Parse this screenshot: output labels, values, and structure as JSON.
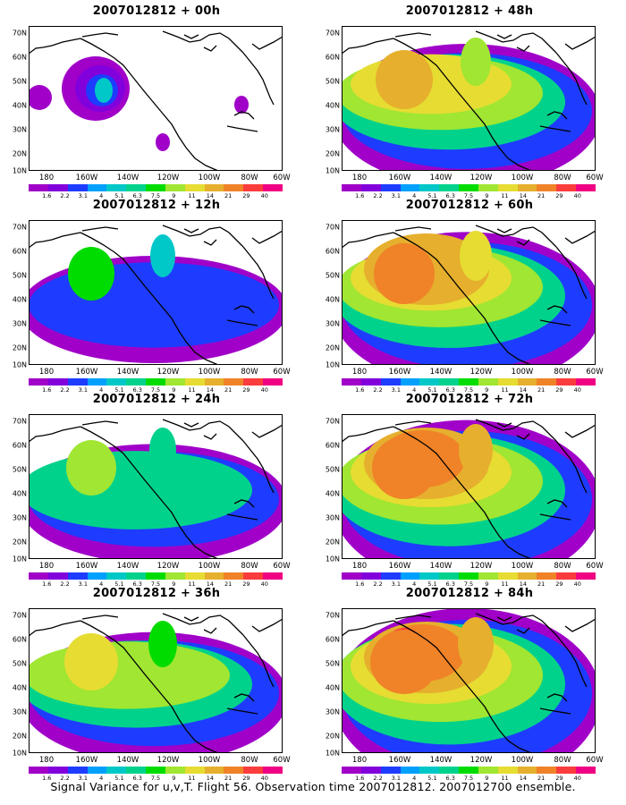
{
  "panels": [
    {
      "title": "2007012812 + 00h",
      "level": 1
    },
    {
      "title": "2007012812 + 48h",
      "level": 5
    },
    {
      "title": "2007012812 + 12h",
      "level": 2
    },
    {
      "title": "2007012812 + 60h",
      "level": 6
    },
    {
      "title": "2007012812 + 24h",
      "level": 3
    },
    {
      "title": "2007012812 + 72h",
      "level": 7
    },
    {
      "title": "2007012812 + 36h",
      "level": 4
    },
    {
      "title": "2007012812 + 84h",
      "level": 8
    }
  ],
  "y_labels": [
    "70N",
    "60N",
    "50N",
    "40N",
    "30N",
    "20N",
    "10N"
  ],
  "x_labels": [
    "180",
    "160W",
    "140W",
    "120W",
    "100W",
    "80W",
    "60W"
  ],
  "colorbar": {
    "labels": [
      "1.6",
      "2.2",
      "3.1",
      "4",
      "5.1",
      "6.3",
      "7.5",
      "9",
      "11",
      "14",
      "21",
      "29",
      "40"
    ],
    "colors": [
      "#a000c8",
      "#8200dc",
      "#1e3cff",
      "#00a0ff",
      "#00c8c8",
      "#00d28c",
      "#00dc00",
      "#a0e632",
      "#e6dc32",
      "#e6af2d",
      "#f08228",
      "#fa3c3c",
      "#f00082"
    ]
  },
  "caption": "Signal Variance for u,v,T. Flight 56. Observation time 2007012812. 2007012700 ensemble."
}
